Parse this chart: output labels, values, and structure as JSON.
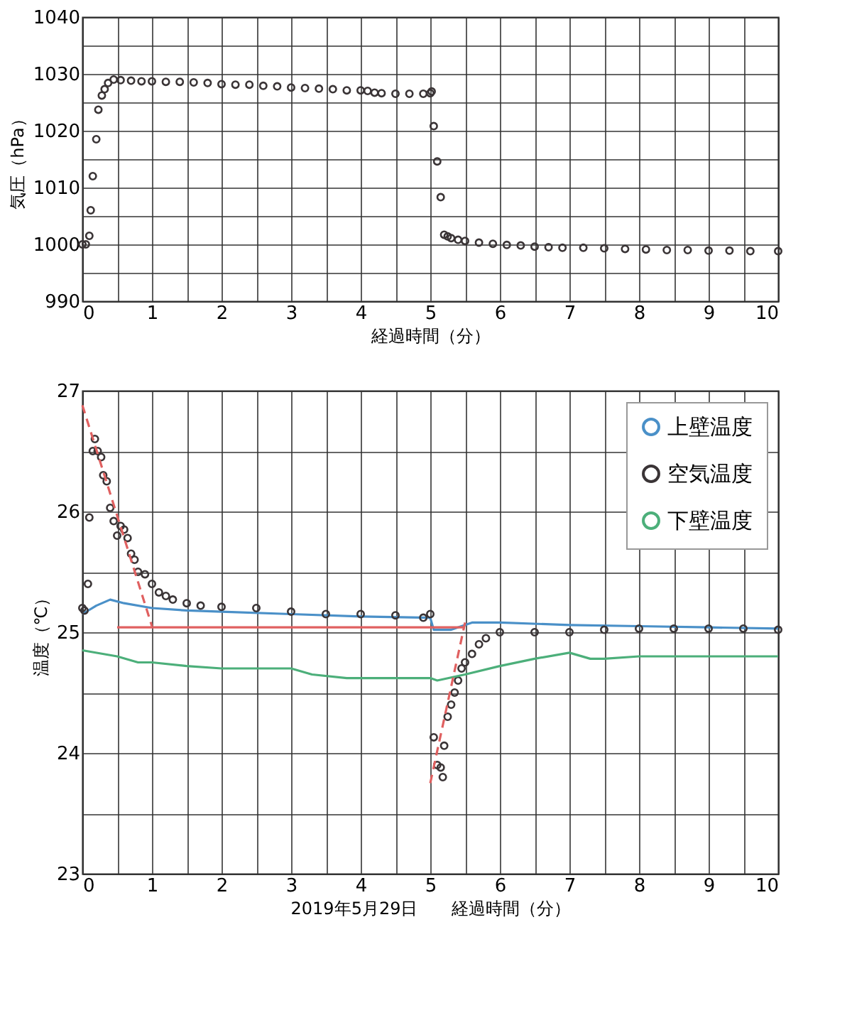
{
  "chart_data": [
    {
      "type": "scatter",
      "xlabel": "経過時間（分）",
      "ylabel": "気圧（hPa）",
      "color": "#3a3436",
      "marker": "circle",
      "grid": true,
      "legend": false,
      "xlim": [
        0,
        10
      ],
      "ylim": [
        990,
        1040
      ],
      "xticks": [
        0,
        {
          "value": 0.5,
          "label": null
        },
        1,
        {
          "value": 1.5,
          "label": null
        },
        2,
        {
          "value": 2.5,
          "label": null
        },
        3,
        {
          "value": 3.5,
          "label": null
        },
        4,
        {
          "value": 4.5,
          "label": null
        },
        5,
        {
          "value": 5.5,
          "label": null
        },
        6,
        {
          "value": 6.5,
          "label": null
        },
        7,
        {
          "value": 7.5,
          "label": null
        },
        8,
        {
          "value": 8.5,
          "label": null
        },
        9,
        {
          "value": 9.5,
          "label": null
        },
        10
      ],
      "yticks": [
        990,
        {
          "value": 995,
          "label": null
        },
        1000,
        {
          "value": 1005,
          "label": null
        },
        1010,
        {
          "value": 1015,
          "label": null
        },
        1020,
        {
          "value": 1025,
          "label": null
        },
        1030,
        {
          "value": 1035,
          "label": null
        },
        1040
      ],
      "x": [
        0,
        0.05,
        0.1,
        0.12,
        0.15,
        0.2,
        0.23,
        0.28,
        0.32,
        0.37,
        0.45,
        0.55,
        0.7,
        0.85,
        1.0,
        1.2,
        1.4,
        1.6,
        1.8,
        2.0,
        2.2,
        2.4,
        2.6,
        2.8,
        3.0,
        3.2,
        3.4,
        3.6,
        3.8,
        4.0,
        4.1,
        4.2,
        4.3,
        4.5,
        4.7,
        4.9,
        5.0,
        5.02,
        5.05,
        5.1,
        5.15,
        5.2,
        5.25,
        5.3,
        5.4,
        5.5,
        5.7,
        5.9,
        6.1,
        6.3,
        6.5,
        6.7,
        6.9,
        7.2,
        7.5,
        7.8,
        8.1,
        8.4,
        8.7,
        9.0,
        9.3,
        9.6,
        10.0
      ],
      "values": [
        1000,
        1000,
        1001.5,
        1006,
        1012,
        1018.5,
        1023.7,
        1026.2,
        1027.3,
        1028.4,
        1029,
        1028.9,
        1028.8,
        1028.7,
        1028.7,
        1028.6,
        1028.6,
        1028.5,
        1028.4,
        1028.2,
        1028.1,
        1028.1,
        1027.9,
        1027.8,
        1027.6,
        1027.5,
        1027.4,
        1027.3,
        1027.1,
        1027.1,
        1027.0,
        1026.7,
        1026.6,
        1026.5,
        1026.5,
        1026.5,
        1026.6,
        1026.9,
        1020.8,
        1014.6,
        1008.3,
        1001.7,
        1001.4,
        1001.1,
        1000.8,
        1000.6,
        1000.3,
        1000.1,
        999.9,
        999.8,
        999.6,
        999.5,
        999.4,
        999.4,
        999.3,
        999.2,
        999.1,
        999.0,
        999.0,
        998.9,
        998.9,
        998.8,
        998.8
      ]
    },
    {
      "type": "line",
      "xlabel": "2019年5月29日　　経過時間（分）",
      "ylabel": "温度（℃）",
      "grid": true,
      "legend": "top right",
      "xlim": [
        0,
        10
      ],
      "ylim": [
        23,
        27
      ],
      "xticks": [
        0,
        {
          "value": 0.5,
          "label": null
        },
        1,
        {
          "value": 1.5,
          "label": null
        },
        2,
        {
          "value": 2.5,
          "label": null
        },
        3,
        {
          "value": 3.5,
          "label": null
        },
        4,
        {
          "value": 4.5,
          "label": null
        },
        5,
        {
          "value": 5.5,
          "label": null
        },
        6,
        {
          "value": 6.5,
          "label": null
        },
        7,
        {
          "value": 7.5,
          "label": null
        },
        8,
        {
          "value": 8.5,
          "label": null
        },
        9,
        {
          "value": 9.5,
          "label": null
        },
        10
      ],
      "yticks": [
        23,
        {
          "value": 23.5,
          "label": null
        },
        24,
        {
          "value": 24.5,
          "label": null
        },
        25,
        {
          "value": 25.5,
          "label": null
        },
        26,
        {
          "value": 26.5,
          "label": null
        },
        27
      ],
      "series": [
        {
          "name": "上壁温度",
          "type": "line",
          "color": "#4a90c8",
          "x": [
            0,
            0.2,
            0.4,
            0.6,
            1,
            1.5,
            2,
            3,
            4,
            5,
            5.05,
            5.3,
            5.6,
            6,
            7,
            8,
            9,
            10
          ],
          "values": [
            25.15,
            25.22,
            25.27,
            25.24,
            25.2,
            25.18,
            25.17,
            25.15,
            25.13,
            25.12,
            25.02,
            25.02,
            25.08,
            25.08,
            25.06,
            25.05,
            25.04,
            25.03
          ]
        },
        {
          "name": "空気温度",
          "type": "scatter",
          "marker": "circle",
          "color": "#3a3436",
          "x": [
            0,
            0.03,
            0.08,
            0.1,
            0.15,
            0.18,
            0.22,
            0.27,
            0.3,
            0.35,
            0.4,
            0.45,
            0.5,
            0.55,
            0.6,
            0.65,
            0.7,
            0.75,
            0.8,
            0.9,
            1.0,
            1.1,
            1.2,
            1.3,
            1.5,
            1.7,
            2,
            2.5,
            3,
            3.5,
            4,
            4.5,
            4.9,
            5.0,
            5.05,
            5.1,
            5.15,
            5.18,
            5.2,
            5.25,
            5.3,
            5.35,
            5.4,
            5.45,
            5.5,
            5.6,
            5.7,
            5.8,
            6,
            6.5,
            7,
            7.5,
            8,
            8.5,
            9,
            9.5,
            10
          ],
          "values": [
            25.2,
            25.18,
            25.4,
            25.95,
            26.5,
            26.6,
            26.5,
            26.45,
            26.3,
            26.25,
            26.03,
            25.92,
            25.8,
            25.88,
            25.85,
            25.78,
            25.65,
            25.6,
            25.5,
            25.48,
            25.4,
            25.33,
            25.3,
            25.27,
            25.24,
            25.22,
            25.21,
            25.2,
            25.17,
            25.15,
            25.15,
            25.14,
            25.12,
            25.15,
            24.13,
            23.9,
            23.88,
            23.8,
            24.06,
            24.3,
            24.4,
            24.5,
            24.6,
            24.7,
            24.75,
            24.82,
            24.9,
            24.95,
            25.0,
            25.0,
            25.0,
            25.02,
            25.03,
            25.03,
            25.03,
            25.03,
            25.02
          ]
        },
        {
          "name": "下壁温度",
          "type": "line",
          "color": "#4caf7a",
          "x": [
            0,
            0.5,
            0.8,
            1,
            1.5,
            2,
            2.5,
            3,
            3.3,
            3.8,
            4.5,
            5,
            5.1,
            5.5,
            6,
            6.5,
            7,
            7.3,
            7.5,
            8,
            9,
            10
          ],
          "values": [
            24.85,
            24.8,
            24.75,
            24.75,
            24.72,
            24.7,
            24.7,
            24.7,
            24.65,
            24.62,
            24.62,
            24.62,
            24.6,
            24.65,
            24.72,
            24.78,
            24.83,
            24.78,
            24.78,
            24.8,
            24.8,
            24.8
          ]
        },
        {
          "type": "line",
          "color": "#e06060",
          "line_style": "dashed",
          "x": [
            0,
            1.0
          ],
          "values": [
            26.88,
            25.05
          ]
        },
        {
          "type": "line",
          "color": "#e06060",
          "line_style": "dashed",
          "x": [
            5.0,
            5.5
          ],
          "values": [
            23.75,
            25.08
          ]
        },
        {
          "type": "line",
          "color": "#e06060",
          "line_style": "solid",
          "x": [
            0.5,
            5.5
          ],
          "values": [
            25.04,
            25.04
          ]
        }
      ]
    }
  ]
}
